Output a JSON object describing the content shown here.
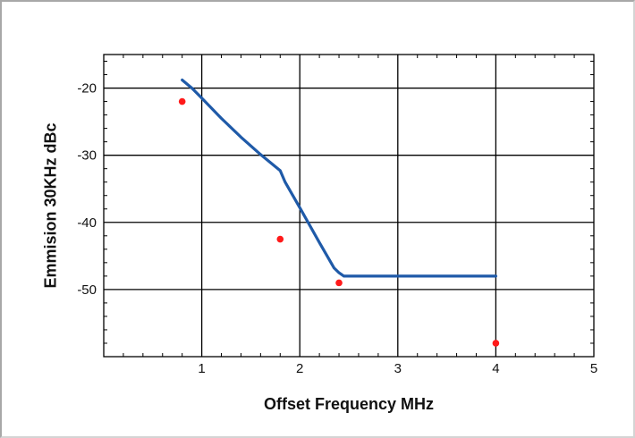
{
  "chart_data": {
    "type": "line",
    "title": "",
    "xlabel": "Offset Frequency MHz",
    "ylabel": "Emmision 30KHz dBc",
    "xlim": [
      0,
      5
    ],
    "ylim": [
      -60,
      -15
    ],
    "xticks": [
      1,
      2,
      3,
      4,
      5
    ],
    "yticks": [
      -20,
      -30,
      -40,
      -50
    ],
    "grid": true,
    "series": [
      {
        "type": "line",
        "color": "#1f5aa8",
        "x": [
          0.8,
          0.9,
          1.0,
          1.2,
          1.4,
          1.6,
          1.8,
          1.85,
          2.0,
          2.2,
          2.35,
          2.4,
          2.45,
          3.0,
          3.5,
          4.0
        ],
        "y": [
          -18.8,
          -20.0,
          -21.5,
          -24.5,
          -27.3,
          -29.9,
          -32.3,
          -34.0,
          -37.8,
          -43.0,
          -46.8,
          -47.5,
          -48.0,
          -48.0,
          -48.0,
          -48.0
        ]
      },
      {
        "type": "scatter",
        "color": "#ff1a1a",
        "x": [
          0.8,
          1.8,
          2.4,
          4.0
        ],
        "y": [
          -22,
          -42.5,
          -49,
          -58
        ]
      }
    ]
  }
}
